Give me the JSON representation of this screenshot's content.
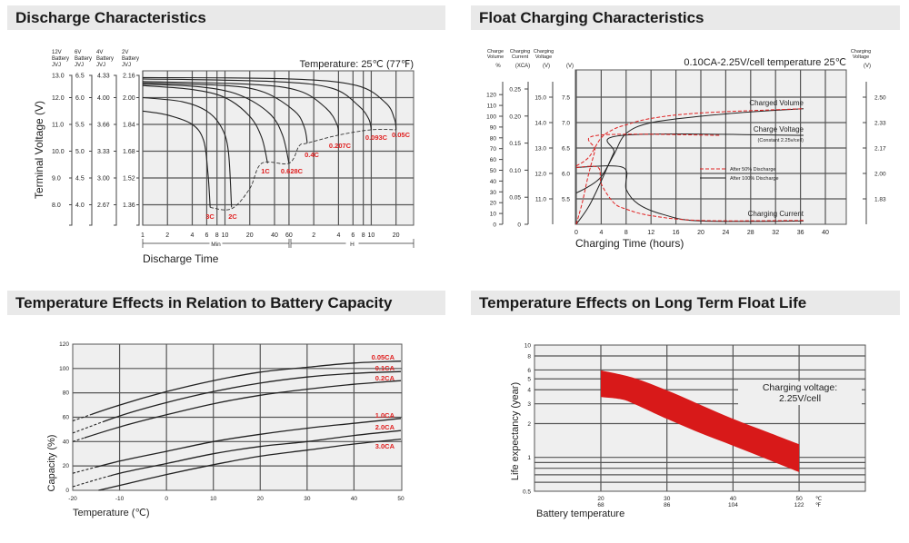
{
  "panels": {
    "discharge_title": "Discharge Characteristics",
    "float_title": "Float Charging Characteristics",
    "temp_capacity_title": "Temperature Effects in Relation to Battery Capacity",
    "float_life_title": "Temperature Effects on Long Term Float Life"
  },
  "colors": {
    "plot_bg": "#efefef",
    "grid": "#555555",
    "curve": "#222222",
    "accent_red": "#e02020",
    "band_red": "#d81919"
  },
  "chart_data": [
    {
      "type": "line",
      "title": "Discharge Characteristics",
      "annotation": "Temperature: 25℃ (77℉)",
      "xlabel": "Discharge Time",
      "ylabel": "Terminal Voltage (V)",
      "x_scale": "log",
      "x_units": "minutes",
      "ylim": [
        7.4,
        13.2
      ],
      "grid": true,
      "x_ticks_min": [
        1,
        2,
        4,
        6,
        8,
        10,
        20,
        40,
        60
      ],
      "x_ticks_hour": [
        2,
        4,
        6,
        8,
        10,
        20
      ],
      "x_range_labels": {
        "min": "Min",
        "hour": "H"
      },
      "voltage_columns": [
        {
          "header": [
            "12V",
            "Battery",
            "JVJ"
          ],
          "ticks": [
            "13.0",
            "12.0",
            "11.0",
            "10.0",
            "9.0",
            "8.0"
          ]
        },
        {
          "header": [
            "6V",
            "Battery",
            "JVJ"
          ],
          "ticks": [
            "6.5",
            "6.0",
            "5.5",
            "5.0",
            "4.5",
            "4.0"
          ]
        },
        {
          "header": [
            "4V",
            "Battery",
            "JVJ"
          ],
          "ticks": [
            "4.33",
            "4.00",
            "3.66",
            "3.33",
            "3.00",
            "2.67"
          ]
        },
        {
          "header": [
            "2V",
            "Battery",
            "JVJ"
          ],
          "ticks": [
            "2.16",
            "2.00",
            "1.84",
            "1.68",
            "1.52",
            "1.36"
          ]
        }
      ],
      "series": [
        {
          "name": "3C",
          "points": [
            [
              1,
              11.5
            ],
            [
              2,
              11.35
            ],
            [
              4,
              11.0
            ],
            [
              5.5,
              10.4
            ],
            [
              6.2,
              9.2
            ],
            [
              6.6,
              7.9
            ]
          ]
        },
        {
          "name": "2C",
          "points": [
            [
              1,
              12.0
            ],
            [
              3,
              11.85
            ],
            [
              6,
              11.5
            ],
            [
              9,
              10.9
            ],
            [
              11,
              10.0
            ],
            [
              12,
              7.9
            ]
          ]
        },
        {
          "name": "1C",
          "points": [
            [
              1,
              12.45
            ],
            [
              4,
              12.3
            ],
            [
              10,
              12.0
            ],
            [
              20,
              11.3
            ],
            [
              28,
              10.5
            ],
            [
              33,
              9.55
            ]
          ]
        },
        {
          "name": "0.628C",
          "points": [
            [
              1,
              12.5
            ],
            [
              5,
              12.4
            ],
            [
              15,
              12.1
            ],
            [
              35,
              11.4
            ],
            [
              50,
              10.6
            ],
            [
              60,
              9.55
            ]
          ]
        },
        {
          "name": "0.4C",
          "points": [
            [
              1,
              12.55
            ],
            [
              10,
              12.45
            ],
            [
              30,
              12.2
            ],
            [
              70,
              11.5
            ],
            [
              92,
              10.9
            ],
            [
              100,
              10.3
            ]
          ]
        },
        {
          "name": "0.207C",
          "points": [
            [
              1,
              12.6
            ],
            [
              20,
              12.5
            ],
            [
              80,
              12.25
            ],
            [
              170,
              11.6
            ],
            [
              230,
              11.0
            ],
            [
              240,
              10.6
            ]
          ]
        },
        {
          "name": "0.093C",
          "points": [
            [
              1,
              12.7
            ],
            [
              40,
              12.6
            ],
            [
              200,
              12.35
            ],
            [
              420,
              11.7
            ],
            [
              560,
              11.2
            ],
            [
              600,
              10.8
            ]
          ]
        },
        {
          "name": "0.05C",
          "points": [
            [
              1,
              12.75
            ],
            [
              60,
              12.7
            ],
            [
              400,
              12.45
            ],
            [
              900,
              11.8
            ],
            [
              1150,
              11.2
            ],
            [
              1200,
              10.8
            ]
          ]
        }
      ],
      "cutoff_line": [
        [
          6.6,
          7.9
        ],
        [
          12,
          7.85
        ],
        [
          20,
          8.6
        ],
        [
          28,
          9.55
        ],
        [
          60,
          9.55
        ],
        [
          80,
          10.2
        ],
        [
          100,
          10.3
        ],
        [
          240,
          10.6
        ],
        [
          600,
          10.8
        ],
        [
          1200,
          10.8
        ]
      ]
    },
    {
      "type": "line",
      "title": "Float Charging Characteristics",
      "annotation": "0.10CA-2.25V/cell  temperature 25℃",
      "xlabel": "Charging Time (hours)",
      "xlim": [
        0,
        43.4
      ],
      "x_ticks": [
        0,
        4,
        8,
        12,
        16,
        20,
        24,
        28,
        32,
        36,
        40
      ],
      "grid": true,
      "axes": {
        "charge_volume": {
          "header": [
            "Charge",
            "Volume"
          ],
          "unit": "%",
          "ticks": [
            0,
            10,
            20,
            30,
            40,
            50,
            60,
            70,
            80,
            90,
            100,
            110,
            120
          ]
        },
        "charging_current": {
          "header": [
            "Charging",
            "Current"
          ],
          "unit": "(XCA)",
          "ticks": [
            "0",
            "0.05",
            "0.10",
            "0.15",
            "0.20",
            "0.25"
          ]
        },
        "charging_voltage_12v": {
          "header": [
            "Charging",
            "Voltage"
          ],
          "unit": "(V)",
          "ticks": [
            "11.0",
            "12.0",
            "13.0",
            "14.0",
            "15.0"
          ]
        },
        "charging_voltage_6v": {
          "unit": "(V)",
          "ticks": [
            "5.5",
            "6.0",
            "6.5",
            "7.0",
            "7.5"
          ]
        },
        "charging_voltage_cell": {
          "header": [
            "Charging",
            "Voltage"
          ],
          "unit": "(V)",
          "ticks": [
            "1.83",
            "2.00",
            "2.17",
            "2.33",
            "2.50"
          ]
        }
      },
      "curve_labels": {
        "volume": "Charged Volume",
        "voltage": "Charge Voltage",
        "voltage_note": "(Constant 2.25v/cell)",
        "current": "Charging Current"
      },
      "legend": [
        {
          "name": "After  50% Discharge",
          "style": "dashed",
          "color": "#e02020"
        },
        {
          "name": "After 100% Discharge",
          "style": "solid",
          "color": "#222222"
        }
      ],
      "legend_position": "center-right",
      "series": [
        {
          "curve": "volume",
          "case": "100%",
          "unit": "%",
          "points": [
            [
              0,
              29
            ],
            [
              2,
              35
            ],
            [
              4,
              44
            ],
            [
              6,
              64
            ],
            [
              8,
              84
            ],
            [
              12,
              94
            ],
            [
              20,
              100
            ],
            [
              28,
              104
            ],
            [
              36.5,
              107
            ]
          ]
        },
        {
          "curve": "volume",
          "case": "50%",
          "unit": "%",
          "points": [
            [
              0,
              54
            ],
            [
              2,
              62
            ],
            [
              4,
              80
            ],
            [
              6,
              88
            ],
            [
              8,
              92
            ],
            [
              12,
              98
            ],
            [
              20,
              103
            ],
            [
              36.5,
              107
            ]
          ]
        },
        {
          "curve": "voltage",
          "case": "100%",
          "unit": "V (6V)",
          "points": [
            [
              0,
              5.0
            ],
            [
              2,
              5.35
            ],
            [
              4,
              5.85
            ],
            [
              6,
              6.4
            ],
            [
              7.5,
              6.75
            ],
            [
              36.5,
              6.75
            ]
          ]
        },
        {
          "curve": "voltage",
          "case": "50%",
          "unit": "V (6V)",
          "points": [
            [
              0,
              5.0
            ],
            [
              1,
              5.45
            ],
            [
              2,
              6.0
            ],
            [
              3,
              6.45
            ],
            [
              3.5,
              6.75
            ],
            [
              23,
              6.75
            ]
          ]
        },
        {
          "curve": "current",
          "case": "100%",
          "unit": "CA",
          "points": [
            [
              0,
              0.105
            ],
            [
              7.5,
              0.105
            ],
            [
              8,
              0.065
            ],
            [
              10,
              0.037
            ],
            [
              14,
              0.018
            ],
            [
              20,
              0.006
            ],
            [
              36.5,
              0.006
            ]
          ]
        },
        {
          "curve": "current",
          "case": "50%",
          "unit": "CA",
          "points": [
            [
              0,
              0.105
            ],
            [
              3.5,
              0.105
            ],
            [
              4,
              0.075
            ],
            [
              6,
              0.04
            ],
            [
              8,
              0.028
            ],
            [
              12,
              0.016
            ],
            [
              20,
              0.007
            ],
            [
              36.5,
              0.007
            ]
          ]
        }
      ]
    },
    {
      "type": "line",
      "title": "Temperature Effects in Relation to Battery Capacity",
      "xlabel": "Temperature (℃)",
      "ylabel": "Capacity (%)",
      "xlim": [
        -20,
        50
      ],
      "ylim": [
        0,
        120
      ],
      "x_ticks": [
        -20,
        -10,
        0,
        10,
        20,
        30,
        40,
        50
      ],
      "y_ticks": [
        0,
        20,
        40,
        60,
        80,
        100,
        120
      ],
      "grid": true,
      "series": [
        {
          "name": "0.05CA",
          "dashed_until": -16,
          "points": [
            [
              -20,
              57
            ],
            [
              -10,
              70
            ],
            [
              0,
              81
            ],
            [
              10,
              90
            ],
            [
              20,
              97
            ],
            [
              30,
              101
            ],
            [
              40,
              104.5
            ],
            [
              50,
              106
            ]
          ]
        },
        {
          "name": "0.1CA",
          "dashed_until": -13.5,
          "points": [
            [
              -20,
              47
            ],
            [
              -10,
              61
            ],
            [
              0,
              72
            ],
            [
              10,
              81
            ],
            [
              20,
              88
            ],
            [
              30,
              93
            ],
            [
              40,
              96
            ],
            [
              50,
              97.5
            ]
          ]
        },
        {
          "name": "0.2CA",
          "dashed_until": -17.5,
          "points": [
            [
              -20,
              40
            ],
            [
              -10,
              52
            ],
            [
              0,
              62
            ],
            [
              10,
              71
            ],
            [
              20,
              78
            ],
            [
              30,
              83
            ],
            [
              40,
              87
            ],
            [
              50,
              90
            ]
          ]
        },
        {
          "name": "1.0CA",
          "dashed_until": -15,
          "points": [
            [
              -20,
              14
            ],
            [
              -10,
              24
            ],
            [
              0,
              32
            ],
            [
              10,
              40
            ],
            [
              20,
              46
            ],
            [
              30,
              51
            ],
            [
              40,
              55
            ],
            [
              50,
              59
            ]
          ]
        },
        {
          "name": "2.0CA",
          "dashed_until": -12,
          "points": [
            [
              -20,
              3
            ],
            [
              -10,
              14
            ],
            [
              0,
              22
            ],
            [
              10,
              30
            ],
            [
              20,
              36
            ],
            [
              30,
              40
            ],
            [
              40,
              45
            ],
            [
              50,
              49
            ]
          ]
        },
        {
          "name": "3.0CA",
          "dashed_until": -20,
          "points": [
            [
              -14.5,
              0
            ],
            [
              -10,
              4
            ],
            [
              0,
              13
            ],
            [
              10,
              21
            ],
            [
              20,
              28
            ],
            [
              30,
              33
            ],
            [
              40,
              38
            ],
            [
              50,
              42
            ]
          ]
        }
      ]
    },
    {
      "type": "area",
      "title": "Temperature Effects on Long Term Float Life",
      "xlabel": "Battery temperature",
      "ylabel": "Life expectancy (year)",
      "y_scale": "log",
      "ylim": [
        0.5,
        10
      ],
      "xlim": [
        10,
        60
      ],
      "y_ticks": [
        "10",
        "8",
        "6",
        "5",
        "4",
        "3",
        "2",
        "1",
        "0.5"
      ],
      "y_gridlines": [
        10,
        8,
        6,
        5,
        4,
        3,
        2,
        1,
        0.9,
        0.8,
        0.7,
        0.6,
        0.5
      ],
      "x_ticks": [
        {
          "c": "20",
          "f": "68"
        },
        {
          "c": "30",
          "f": "86"
        },
        {
          "c": "40",
          "f": "104"
        },
        {
          "c": "50",
          "f": "122"
        }
      ],
      "x_units": {
        "c": "℃",
        "f": "℉"
      },
      "annotation": [
        "Charging voltage:",
        "2.25V/cell"
      ],
      "band_upper": [
        [
          20,
          5.95
        ],
        [
          25,
          5.1
        ],
        [
          30,
          3.95
        ],
        [
          35,
          2.95
        ],
        [
          40,
          2.2
        ],
        [
          45,
          1.7
        ],
        [
          50,
          1.31
        ]
      ],
      "band_lower": [
        [
          20,
          3.45
        ],
        [
          23,
          3.3
        ],
        [
          25,
          3.0
        ],
        [
          30,
          2.2
        ],
        [
          35,
          1.65
        ],
        [
          40,
          1.27
        ],
        [
          45,
          0.97
        ],
        [
          50,
          0.74
        ]
      ]
    }
  ]
}
